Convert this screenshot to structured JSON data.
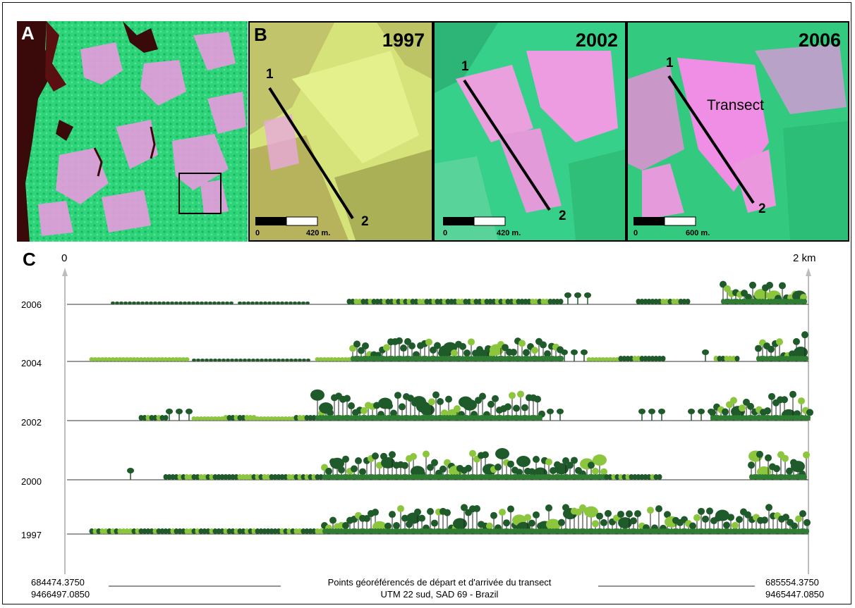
{
  "figure": {
    "panel_a": {
      "label": "A"
    },
    "panel_b": {
      "label": "B",
      "images": [
        {
          "year": "1997",
          "point_start": "1",
          "point_end": "2",
          "scale_zero": "0",
          "scale_end": "420 m.",
          "transect_label": ""
        },
        {
          "year": "2002",
          "point_start": "1",
          "point_end": "2",
          "scale_zero": "0",
          "scale_end": "420 m.",
          "transect_label": ""
        },
        {
          "year": "2006",
          "point_start": "1",
          "point_end": "2",
          "scale_zero": "0",
          "scale_end": "600 m.",
          "transect_label": "Transect"
        }
      ]
    },
    "panel_c": {
      "label": "C",
      "axis_start": "0",
      "axis_end": "2 km",
      "profiles": [
        {
          "year": "2006"
        },
        {
          "year": "2004"
        },
        {
          "year": "2002"
        },
        {
          "year": "2000"
        },
        {
          "year": "1997"
        }
      ]
    },
    "footer": {
      "start_coord_e": "684474.3750",
      "start_coord_n": "9466497.0850",
      "end_coord_e": "685554.3750",
      "end_coord_n": "9465447.0850",
      "caption_line1": "Points géoréférencés de départ et d'arrivée du transect",
      "caption_line2": "UTM 22 sud, SAD  69 - Brazil"
    },
    "colors": {
      "forest_green": "#2fd47a",
      "deforested_pink": "#e79bde",
      "water_dark": "#3a0a0a",
      "soil_yellow": "#d6e27a",
      "tree_dark": "#1f5a2a",
      "tree_light": "#8cc63f"
    }
  }
}
